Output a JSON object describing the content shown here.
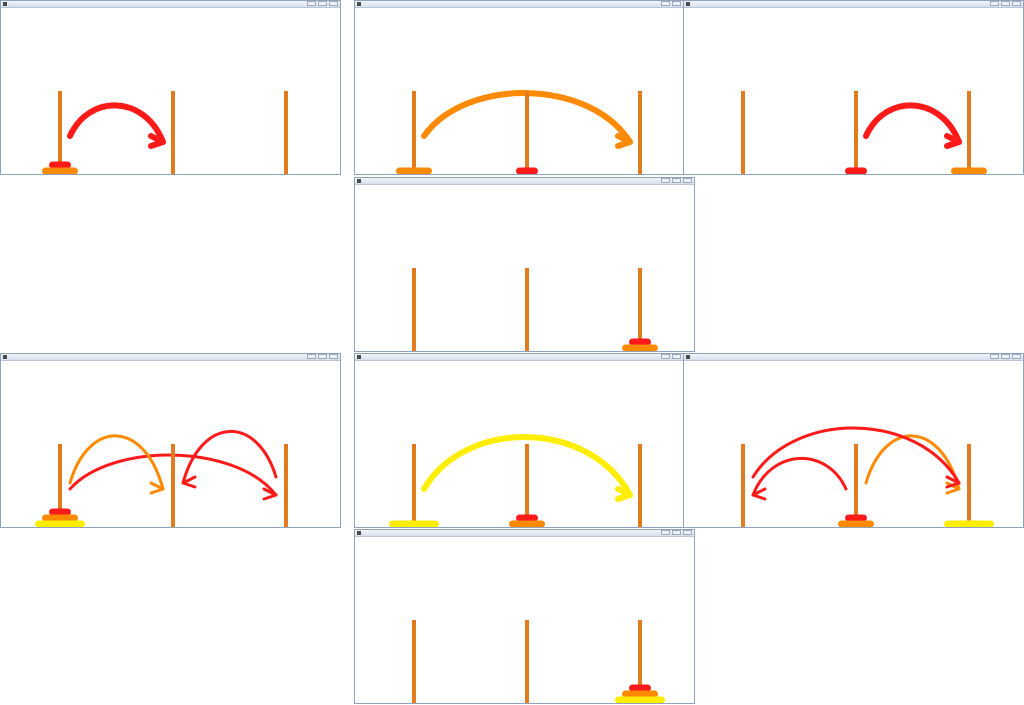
{
  "colors": {
    "peg": "#e07b1f",
    "small": "#ff1a1a",
    "medium": "#ff8a00",
    "large": "#ffee00",
    "titlebar": "#dbe5f0",
    "border": "#8fa3bd"
  },
  "panels": [
    {
      "id": "step-1",
      "pegs": [
        [
          "small",
          "medium"
        ],
        [],
        []
      ],
      "moves": [
        {
          "disk": "small",
          "from": 0,
          "to": 1
        }
      ]
    },
    {
      "id": "step-2",
      "pegs": [
        [
          "medium"
        ],
        [
          "small"
        ],
        []
      ],
      "moves": [
        {
          "disk": "medium",
          "from": 0,
          "to": 2
        }
      ]
    },
    {
      "id": "step-3",
      "pegs": [
        [],
        [
          "small"
        ],
        [
          "medium"
        ]
      ],
      "moves": [
        {
          "disk": "small",
          "from": 1,
          "to": 2
        }
      ]
    },
    {
      "id": "step-4",
      "pegs": [
        [],
        [],
        [
          "small",
          "medium"
        ]
      ],
      "moves": []
    },
    {
      "id": "step-5",
      "pegs": [
        [
          "small",
          "medium",
          "large"
        ],
        [],
        []
      ],
      "moves": [
        {
          "disk": "small",
          "from": 0,
          "to": 2
        },
        {
          "disk": "medium",
          "from": 0,
          "to": 1
        },
        {
          "disk": "small",
          "from": 2,
          "to": 1
        }
      ]
    },
    {
      "id": "step-6",
      "pegs": [
        [
          "large"
        ],
        [
          "small",
          "medium"
        ],
        []
      ],
      "moves": [
        {
          "disk": "large",
          "from": 0,
          "to": 2
        }
      ]
    },
    {
      "id": "step-7",
      "pegs": [
        [],
        [
          "small",
          "medium"
        ],
        [
          "large"
        ]
      ],
      "moves": [
        {
          "disk": "small",
          "from": 1,
          "to": 0
        },
        {
          "disk": "medium",
          "from": 1,
          "to": 2
        },
        {
          "disk": "small",
          "from": 0,
          "to": 2
        }
      ]
    },
    {
      "id": "step-8",
      "pegs": [
        [],
        [],
        [
          "small",
          "medium",
          "large"
        ]
      ],
      "moves": []
    }
  ]
}
